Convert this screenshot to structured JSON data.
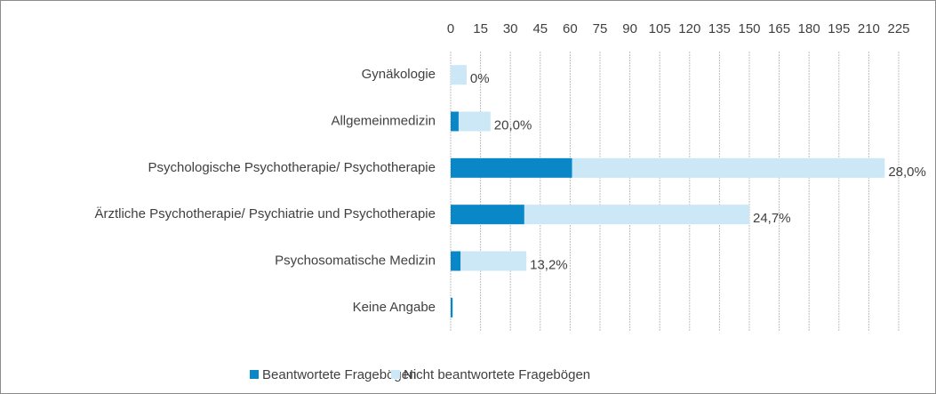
{
  "chart_data": {
    "type": "stacked_barh",
    "categories": [
      "Gynäkologie",
      "Allgemeinmedizin",
      "Psychologische Psychotherapie/ Psychotherapie",
      "Ärztliche Psychotherapie/ Psychiatrie und Psychotherapie",
      "Psychosomatische Medizin",
      "Keine Angabe"
    ],
    "series": [
      {
        "name": "Beantwortete Fragebögen",
        "color": "#0a87c6",
        "values": [
          0,
          4,
          61,
          37,
          5,
          1
        ]
      },
      {
        "name": "Nicht beantwortete Fragebögen",
        "color": "#cce7f5",
        "values": [
          8,
          16,
          157,
          113,
          33,
          0
        ]
      }
    ],
    "annotations": [
      "0%",
      "20,0%",
      "28,0%",
      "24,7%",
      "13,2%",
      null
    ],
    "xlim": [
      0,
      225
    ],
    "xticks": [
      0,
      15,
      30,
      45,
      60,
      75,
      90,
      105,
      120,
      135,
      150,
      165,
      180,
      195,
      210,
      225
    ],
    "grid": true,
    "legend": "bottom"
  }
}
